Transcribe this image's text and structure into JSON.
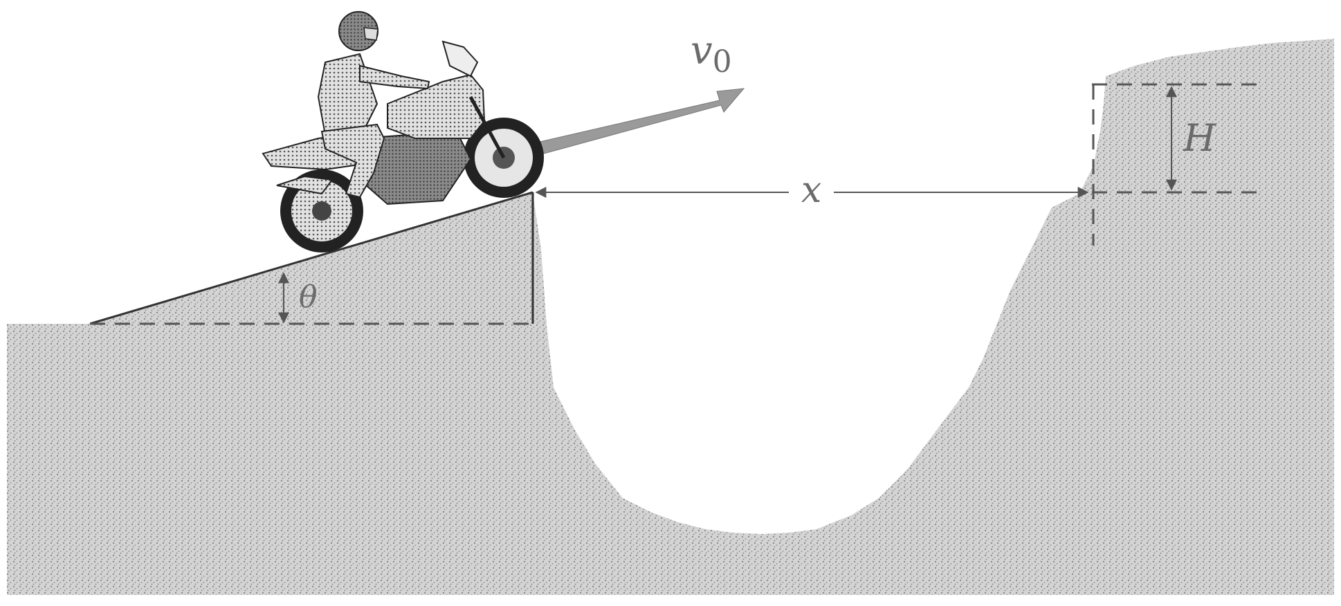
{
  "diagram": {
    "labels": {
      "velocity": "v",
      "velocity_subscript": "0",
      "distance": "x",
      "height": "H",
      "angle": "θ"
    },
    "colors": {
      "ground": "#c9c9c9",
      "ground_speckle": "#8e8e8e",
      "ink": "#333333",
      "label": "#6b6b6b",
      "velocity_arrow": "#9a9a9a"
    },
    "icons": [
      "motorcycle-rider-icon"
    ]
  }
}
